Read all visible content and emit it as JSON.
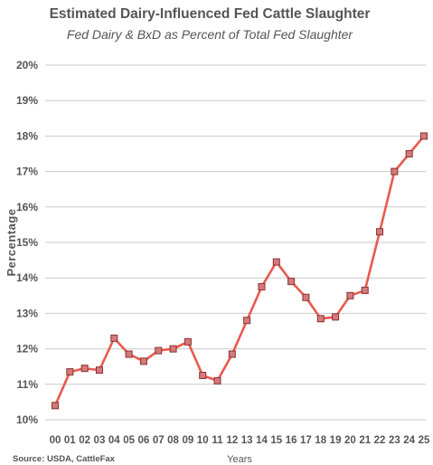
{
  "chart_data": {
    "type": "line",
    "title": "Estimated Dairy-Influenced Fed Cattle Slaughter",
    "subtitle": "Fed Dairy & BxD as Percent of Total Fed Slaughter",
    "ylabel": "Percentage",
    "xlabel": "Years",
    "source": "Source: USDA, CattleFax",
    "ylim": [
      10,
      20
    ],
    "y_ticks": [
      "10%",
      "11%",
      "12%",
      "13%",
      "14%",
      "15%",
      "16%",
      "17%",
      "18%",
      "19%",
      "20%"
    ],
    "grid": true,
    "legend": "none",
    "categories": [
      "00",
      "01",
      "02",
      "03",
      "04",
      "05",
      "06",
      "07",
      "08",
      "09",
      "10",
      "11",
      "12",
      "13",
      "14",
      "15",
      "16",
      "17",
      "18",
      "19",
      "20",
      "21",
      "22",
      "23",
      "24",
      "25"
    ],
    "series": [
      {
        "values": [
          10.4,
          11.35,
          11.45,
          11.4,
          12.3,
          11.85,
          11.65,
          11.95,
          12.0,
          12.2,
          11.25,
          11.1,
          11.85,
          12.8,
          13.75,
          14.45,
          13.9,
          13.45,
          12.85,
          12.9,
          13.5,
          13.65,
          15.3,
          17.0,
          17.5,
          18.0
        ],
        "color": "#e85a4f",
        "marker_fill": "#d47a7a",
        "marker_stroke": "#8a3030"
      }
    ]
  }
}
